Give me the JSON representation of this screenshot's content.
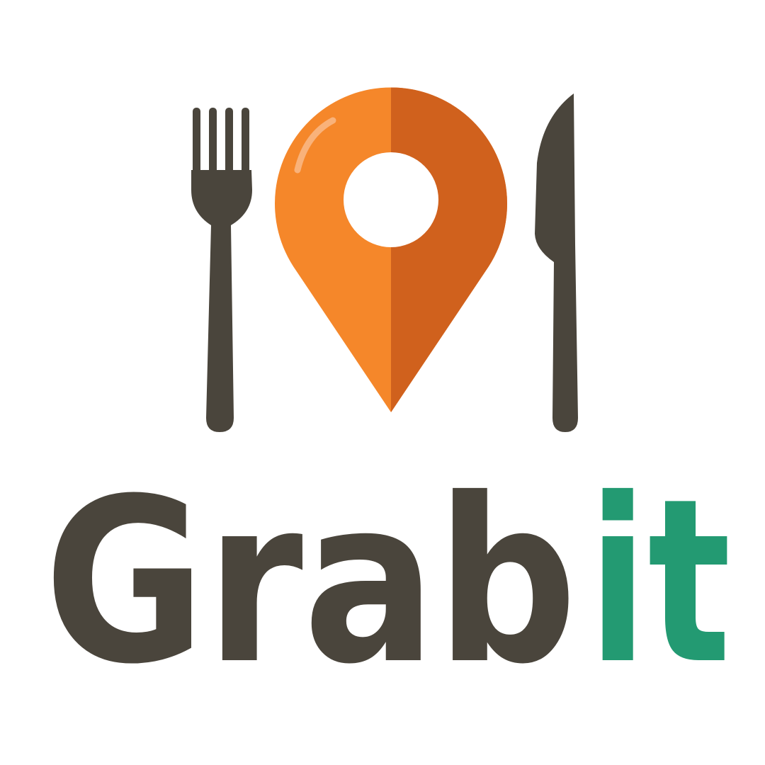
{
  "logo": {
    "wordmark_main": "Grab",
    "wordmark_accent": "it"
  }
}
